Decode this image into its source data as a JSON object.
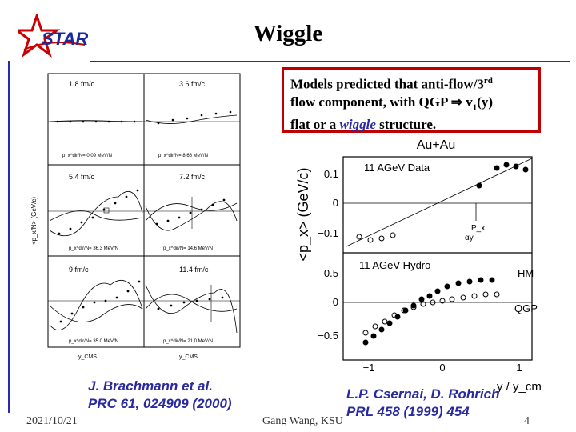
{
  "title": "Wiggle",
  "logo": {
    "text": "STAR",
    "color": "#cc0000"
  },
  "callout": {
    "line1_pre": "Models predicted that anti-flow/3",
    "line1_sup": "rd",
    "line2": "flow component, with QGP ⇒ v",
    "line2_sub": "1",
    "line2_post": "(y)",
    "line3_pre": "flat or a ",
    "line3_wiggle": "wiggle",
    "line3_post": " structure."
  },
  "left_figure": {
    "ylabel": "<p_x/N> (GeV/c)",
    "xlabel": "y_CMS",
    "panels": [
      {
        "label": "1.8 fm/c",
        "note": "p_x^dir/N= 0.09 MeV/N"
      },
      {
        "label": "3.6 fm/c",
        "note": "p_x^dir/N= 8.66 MeV/N"
      },
      {
        "label": "5.4 fm/c",
        "note": "p_x^dir/N= 36.3 MeV/N"
      },
      {
        "label": "7.2 fm/c",
        "note": "p_x^dir/N= 14.6 MeV/N"
      },
      {
        "label": "9 fm/c",
        "note": "p_x^dir/N= 35.0 MeV/N"
      },
      {
        "label": "11.4 fm/c",
        "note": "p_x^dir/N= 21.0 MeV/N"
      }
    ]
  },
  "right_figure": {
    "title": "Au+Au",
    "ylabel": "<p_x> (GeV/c)",
    "xlabel": "y / y_cm",
    "top_label": "11 AGeV Data",
    "bottom_label": "11 AGeV Hydro",
    "hm": "HM",
    "qgp": "QGP",
    "px_annot": "P_x",
    "ay_annot": "αy",
    "top_yticks": [
      "0.1",
      "0",
      "−0.1"
    ],
    "bottom_yticks": [
      "0.5",
      "0",
      "−0.5"
    ],
    "xticks": [
      "−1",
      "0",
      "1"
    ]
  },
  "citations": {
    "left_line1": "J. Brachmann et al.",
    "left_line2": "PRC 61, 024909  (2000)",
    "right_line1": "L.P. Csernai, D. Rohrich",
    "right_line2": "PRL 458 (1999) 454"
  },
  "footer": {
    "date": "2021/10/21",
    "author": "Gang Wang, KSU",
    "page": "4"
  }
}
